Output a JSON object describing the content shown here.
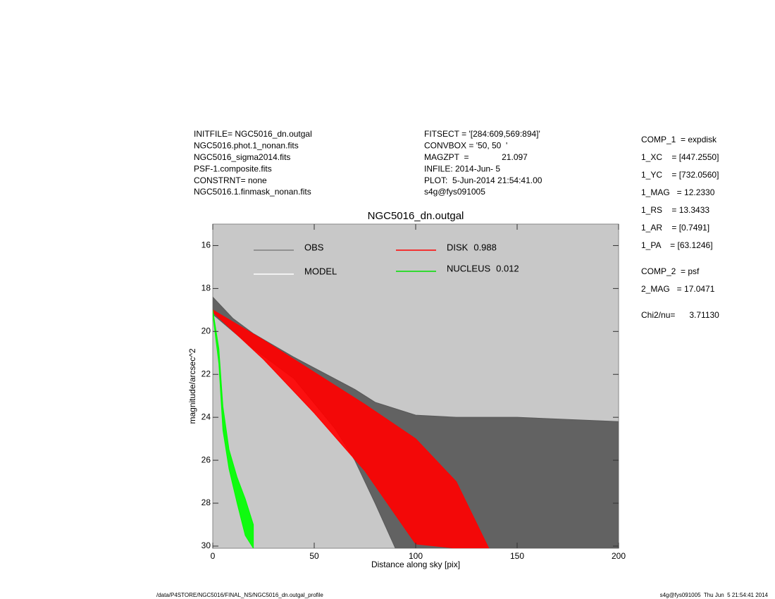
{
  "header": {
    "left": [
      "INITFILE= NGC5016_dn.outgal",
      "NGC5016.phot.1_nonan.fits",
      "NGC5016_sigma2014.fits",
      "PSF-1.composite.fits",
      "CONSTRNT= none",
      "NGC5016.1.finmask_nonan.fits"
    ],
    "middle": [
      "FITSECT = '[284:609,569:894]'",
      "CONVBOX = '50, 50  '",
      "MAGZPT  =              21.097",
      "INFILE: 2014-Jun- 5",
      "PLOT:  5-Jun-2014 21:54:41.00",
      "s4g@fys091005"
    ]
  },
  "components": [
    [
      "COMP_1  = expdisk",
      "1_XC    = [447.2550]",
      "1_YC    = [732.0560]",
      "1_MAG   = 12.2330",
      "1_RS    = 13.3433",
      "1_AR    = [0.7491]",
      "1_PA    = [63.1246]"
    ],
    [
      "COMP_2  = psf",
      "2_MAG   = 17.0471"
    ],
    [
      "Chi2/nu=      3.71130"
    ]
  ],
  "footer": {
    "left": "/data/P4STORE/NGC5016/FINAL_NS/NGC5016_dn.outgal_profile",
    "right": "s4g@fys091005  Thu Jun  5 21:54:41 2014"
  },
  "chart_data": {
    "type": "scatter",
    "title": "NGC5016_dn.outgal",
    "x_label": "Distance along sky [pix]",
    "y_label": "magnitude/arcsec^2",
    "xlim": [
      0,
      200
    ],
    "xticks": [
      0,
      50,
      100,
      150,
      200
    ],
    "ylim": [
      15,
      30.1
    ],
    "yticks": [
      16,
      18,
      20,
      22,
      24,
      26,
      28,
      30
    ],
    "y_inverted": true,
    "background": "#c8c8c8",
    "series": [
      {
        "name": "OBS",
        "color": "#808080",
        "fill": "#595959",
        "x": [
          0,
          10,
          20,
          40,
          60,
          70,
          80,
          90,
          100,
          120,
          150,
          200
        ],
        "y_high": [
          18.4,
          19.4,
          20.1,
          21.2,
          22.2,
          22.7,
          23.3,
          23.6,
          23.9,
          24.0,
          24.0,
          24.2
        ],
        "y_low": [
          19.2,
          20.0,
          20.8,
          22.2,
          24.5,
          26.0,
          28.0,
          30.1,
          30.1,
          30.1,
          30.1,
          30.1
        ]
      },
      {
        "name": "MODEL",
        "color": "#ffffff"
      },
      {
        "name": "DISK",
        "fraction": 0.988,
        "color": "#ff0000",
        "fill": "#ff0000",
        "x": [
          0,
          25,
          50,
          75,
          100,
          120,
          136
        ],
        "y_high": [
          19.0,
          20.4,
          21.9,
          23.4,
          25.0,
          27.0,
          30.1
        ],
        "y_low": [
          19.1,
          21.3,
          23.8,
          26.5,
          29.9,
          30.1,
          30.1
        ]
      },
      {
        "name": "NUCLEUS",
        "fraction": 0.012,
        "color": "#00e000",
        "fill": "#00ff00",
        "x": [
          0,
          3,
          5,
          8,
          12,
          16,
          20
        ],
        "y_high": [
          19.0,
          20.8,
          23.5,
          25.5,
          26.8,
          27.8,
          29.0
        ],
        "y_low": [
          19.2,
          21.5,
          24.6,
          26.4,
          28.0,
          29.5,
          30.1
        ]
      }
    ]
  }
}
